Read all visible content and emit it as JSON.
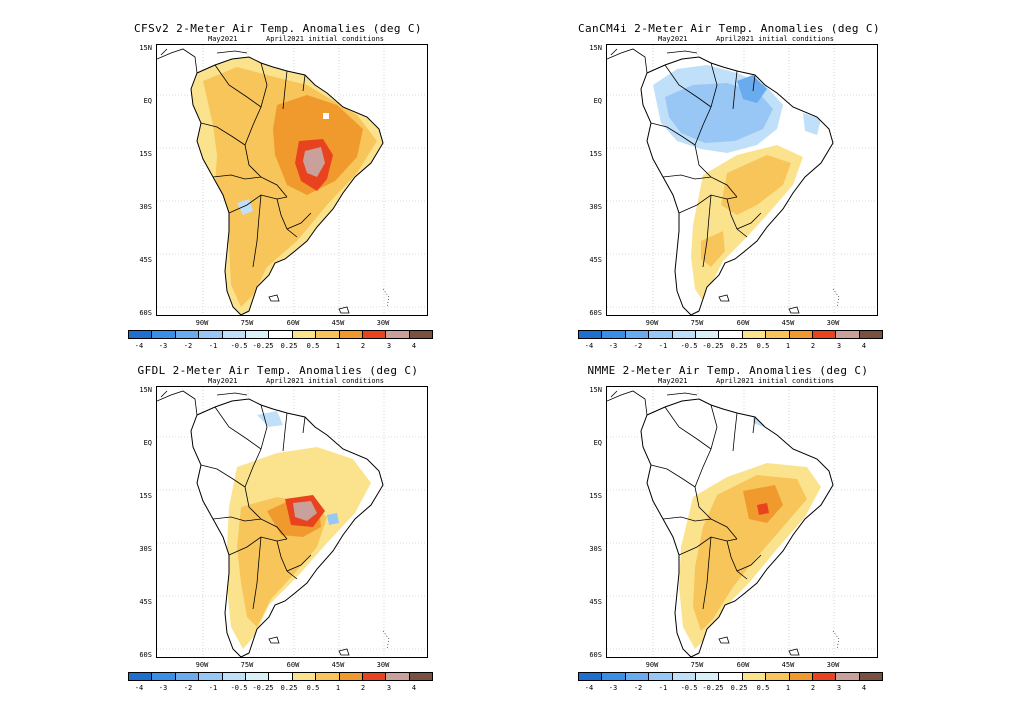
{
  "common": {
    "month": "May2021",
    "init": "April2021 initial conditions",
    "lat_labels": [
      "15N",
      "EQ",
      "15S",
      "30S",
      "45S",
      "60S"
    ],
    "lon_labels": [
      "90W",
      "75W",
      "60W",
      "45W",
      "30W"
    ],
    "legend_labels": [
      "-4",
      "-3",
      "-2",
      "-1",
      "-0.5",
      "-0.25",
      "0.25",
      "0.5",
      "1",
      "2",
      "3",
      "4"
    ],
    "legend_colors": [
      "#1e6fd0",
      "#3a8ee6",
      "#6aabf0",
      "#98c6f5",
      "#bfe0f8",
      "#d9f0f7",
      "#ffffff",
      "#fbe38e",
      "#f7c55a",
      "#f09a2d",
      "#e8431e",
      "#c9a09a",
      "#7a5040"
    ]
  },
  "panels": [
    {
      "id": "cfsv2",
      "title": "CFSv2 2-Meter Air Temp. Anomalies (deg C)"
    },
    {
      "id": "cancm4i",
      "title": "CanCM4i 2-Meter Air Temp. Anomalies (deg C)"
    },
    {
      "id": "gfdl",
      "title": "GFDL 2-Meter Air Temp. Anomalies (deg C)"
    },
    {
      "id": "nmme",
      "title": "NMME 2-Meter Air Temp. Anomalies (deg C)"
    }
  ]
}
